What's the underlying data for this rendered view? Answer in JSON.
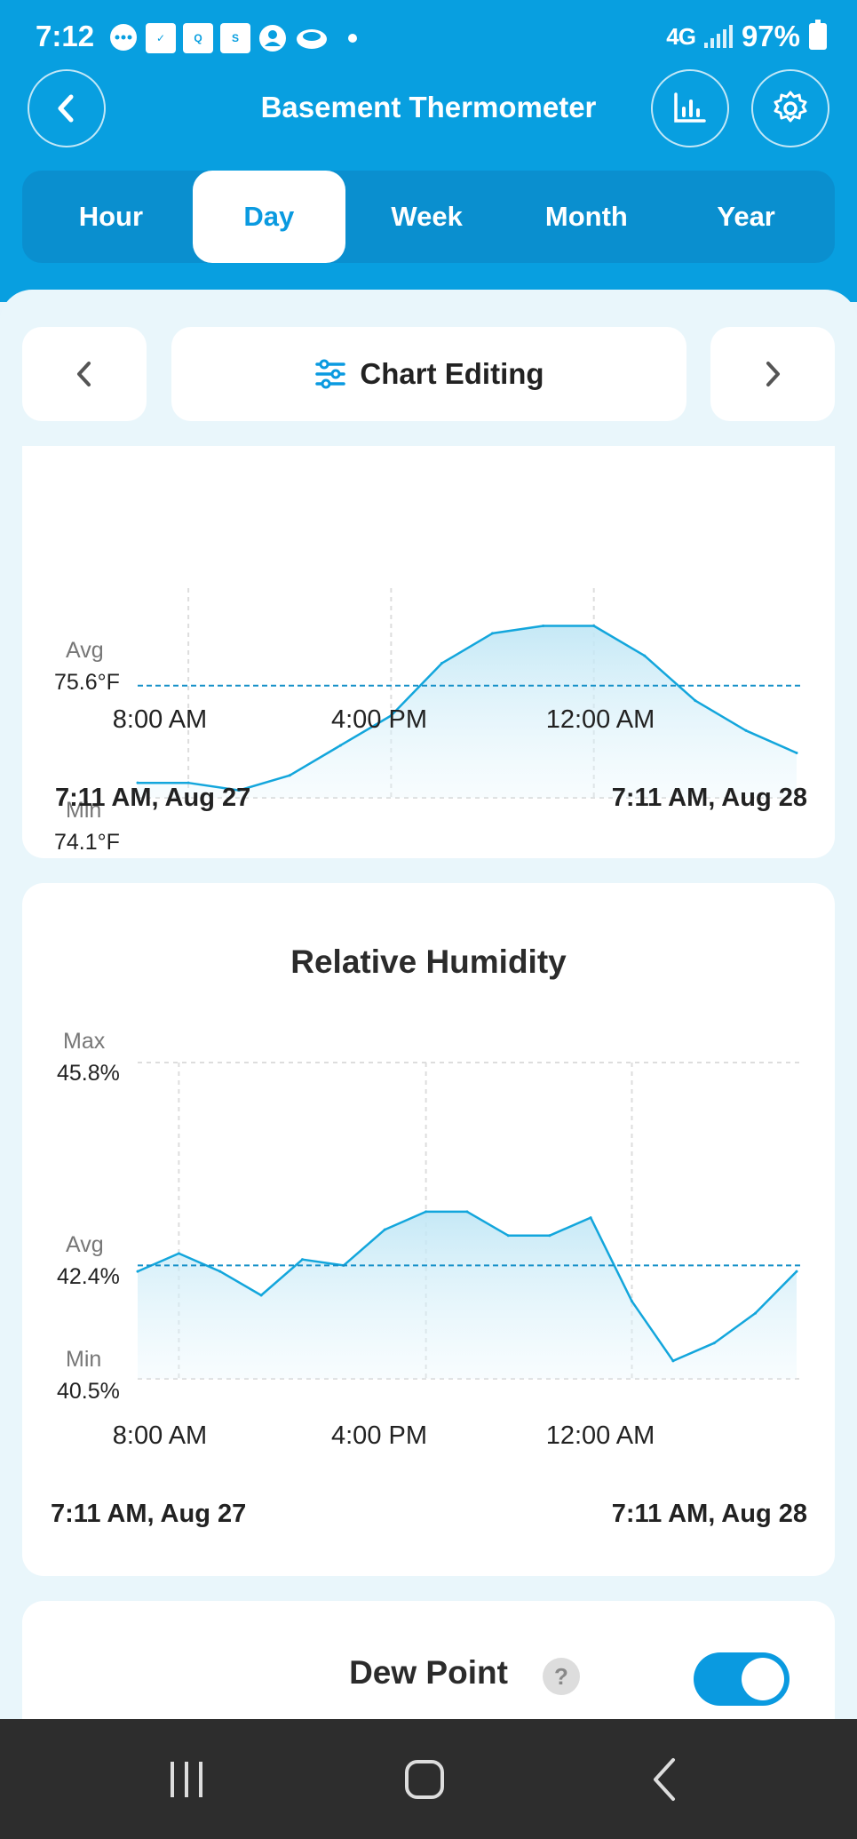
{
  "status_bar": {
    "time": "7:12",
    "network": "4G",
    "battery": "97%",
    "app_icons": [
      "message-icon",
      "calendar-icon",
      "myq-icon",
      "schwab-icon",
      "profile-icon",
      "cloud-icon"
    ]
  },
  "header": {
    "title": "Basement Thermometer"
  },
  "tabs": [
    {
      "label": "Hour",
      "active": false
    },
    {
      "label": "Day",
      "active": true
    },
    {
      "label": "Week",
      "active": false
    },
    {
      "label": "Month",
      "active": false
    },
    {
      "label": "Year",
      "active": false
    }
  ],
  "nav": {
    "editing_label": "Chart Editing"
  },
  "temperature_card": {
    "avg_label": "Avg",
    "avg_value": "75.6°F",
    "min_label": "Min",
    "min_value": "74.1°F",
    "ticks": [
      "8:00 AM",
      "4:00 PM",
      "12:00 AM"
    ],
    "range_start": "7:11 AM, Aug 27",
    "range_end": "7:11 AM, Aug 28"
  },
  "humidity_card": {
    "title": "Relative Humidity",
    "max_label": "Max",
    "max_value": "45.8%",
    "avg_label": "Avg",
    "avg_value": "42.4%",
    "min_label": "Min",
    "min_value": "40.5%",
    "ticks": [
      "8:00 AM",
      "4:00 PM",
      "12:00 AM"
    ],
    "range_start": "7:11 AM, Aug 27",
    "range_end": "7:11 AM, Aug 28"
  },
  "dew_point_card": {
    "title": "Dew Point",
    "help": "?",
    "enabled": true
  },
  "colors": {
    "accent": "#089fe0",
    "line": "#13a6dc",
    "background": "#e9f6fb"
  },
  "chart_data": [
    {
      "type": "line",
      "ylabel": "",
      "x": [
        "7:11 AM",
        "8:00 AM",
        "10:00 AM",
        "12:00 PM",
        "2:00 PM",
        "4:00 PM",
        "6:00 PM",
        "8:00 PM",
        "10:00 PM",
        "12:00 AM",
        "2:00 AM",
        "4:00 AM",
        "6:00 AM",
        "7:11 AM"
      ],
      "xticks": [
        "8:00 AM",
        "4:00 PM",
        "12:00 AM"
      ],
      "series": [
        {
          "values": [
            74.3,
            74.3,
            74.2,
            74.4,
            74.8,
            75.2,
            75.9,
            76.3,
            76.4,
            76.4,
            76.0,
            75.4,
            75.0,
            74.7
          ]
        }
      ],
      "avg": 75.6,
      "min": 74.1
    },
    {
      "type": "line",
      "title": "Relative Humidity",
      "ylabel": "",
      "x": [
        "7:11 AM",
        "8:00 AM",
        "9:00 AM",
        "10:00 AM",
        "11:00 AM",
        "12:00 PM",
        "2:00 PM",
        "4:00 PM",
        "6:00 PM",
        "8:00 PM",
        "10:00 PM",
        "11:00 PM",
        "12:00 AM",
        "2:00 AM",
        "4:00 AM",
        "6:00 AM",
        "7:11 AM"
      ],
      "xticks": [
        "8:00 AM",
        "4:00 PM",
        "12:00 AM"
      ],
      "series": [
        {
          "values": [
            42.3,
            42.6,
            42.3,
            41.9,
            42.5,
            42.4,
            43.0,
            43.3,
            43.3,
            42.9,
            42.9,
            43.2,
            41.8,
            40.8,
            41.1,
            41.6,
            42.3
          ]
        }
      ],
      "max": 45.8,
      "avg": 42.4,
      "min": 40.5,
      "ylim": [
        40.5,
        45.8
      ]
    }
  ]
}
